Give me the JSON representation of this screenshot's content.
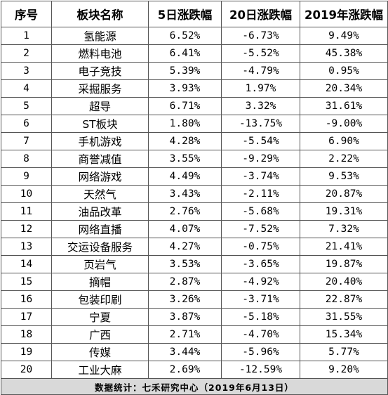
{
  "table": {
    "headers": [
      "序号",
      "板块名称",
      "5日涨跌幅",
      "20日涨跌幅",
      "2019年涨跌幅"
    ],
    "rows": [
      [
        "1",
        "氢能源",
        "6.52%",
        "-6.73%",
        "9.49%"
      ],
      [
        "2",
        "燃料电池",
        "6.41%",
        "-5.52%",
        "45.38%"
      ],
      [
        "3",
        "电子竞技",
        "5.39%",
        "-4.79%",
        "0.95%"
      ],
      [
        "4",
        "采掘服务",
        "3.93%",
        "1.97%",
        "20.34%"
      ],
      [
        "5",
        "超导",
        "6.71%",
        "3.32%",
        "31.61%"
      ],
      [
        "6",
        "ST板块",
        "1.80%",
        "-13.75%",
        "-9.00%"
      ],
      [
        "7",
        "手机游戏",
        "4.28%",
        "-5.54%",
        "6.90%"
      ],
      [
        "8",
        "商誉减值",
        "3.55%",
        "-9.29%",
        "2.22%"
      ],
      [
        "9",
        "网络游戏",
        "4.49%",
        "-3.74%",
        "9.53%"
      ],
      [
        "10",
        "天然气",
        "3.43%",
        "-2.11%",
        "20.87%"
      ],
      [
        "11",
        "油品改革",
        "2.76%",
        "-5.68%",
        "19.31%"
      ],
      [
        "12",
        "网络直播",
        "4.07%",
        "-7.52%",
        "7.32%"
      ],
      [
        "13",
        "交运设备服务",
        "4.27%",
        "-0.75%",
        "21.41%"
      ],
      [
        "14",
        "页岩气",
        "3.53%",
        "-3.65%",
        "19.87%"
      ],
      [
        "15",
        "摘帽",
        "2.87%",
        "-4.92%",
        "20.40%"
      ],
      [
        "16",
        "包装印刷",
        "3.26%",
        "-3.71%",
        "22.87%"
      ],
      [
        "17",
        "宁夏",
        "3.87%",
        "-5.18%",
        "31.55%"
      ],
      [
        "18",
        "广西",
        "2.71%",
        "-4.70%",
        "15.34%"
      ],
      [
        "19",
        "传媒",
        "3.44%",
        "-5.96%",
        "5.77%"
      ],
      [
        "20",
        "工业大麻",
        "2.69%",
        "-12.59%",
        "9.20%"
      ]
    ],
    "footer": "数据统计：七禾研究中心（2019年6月13日）"
  }
}
